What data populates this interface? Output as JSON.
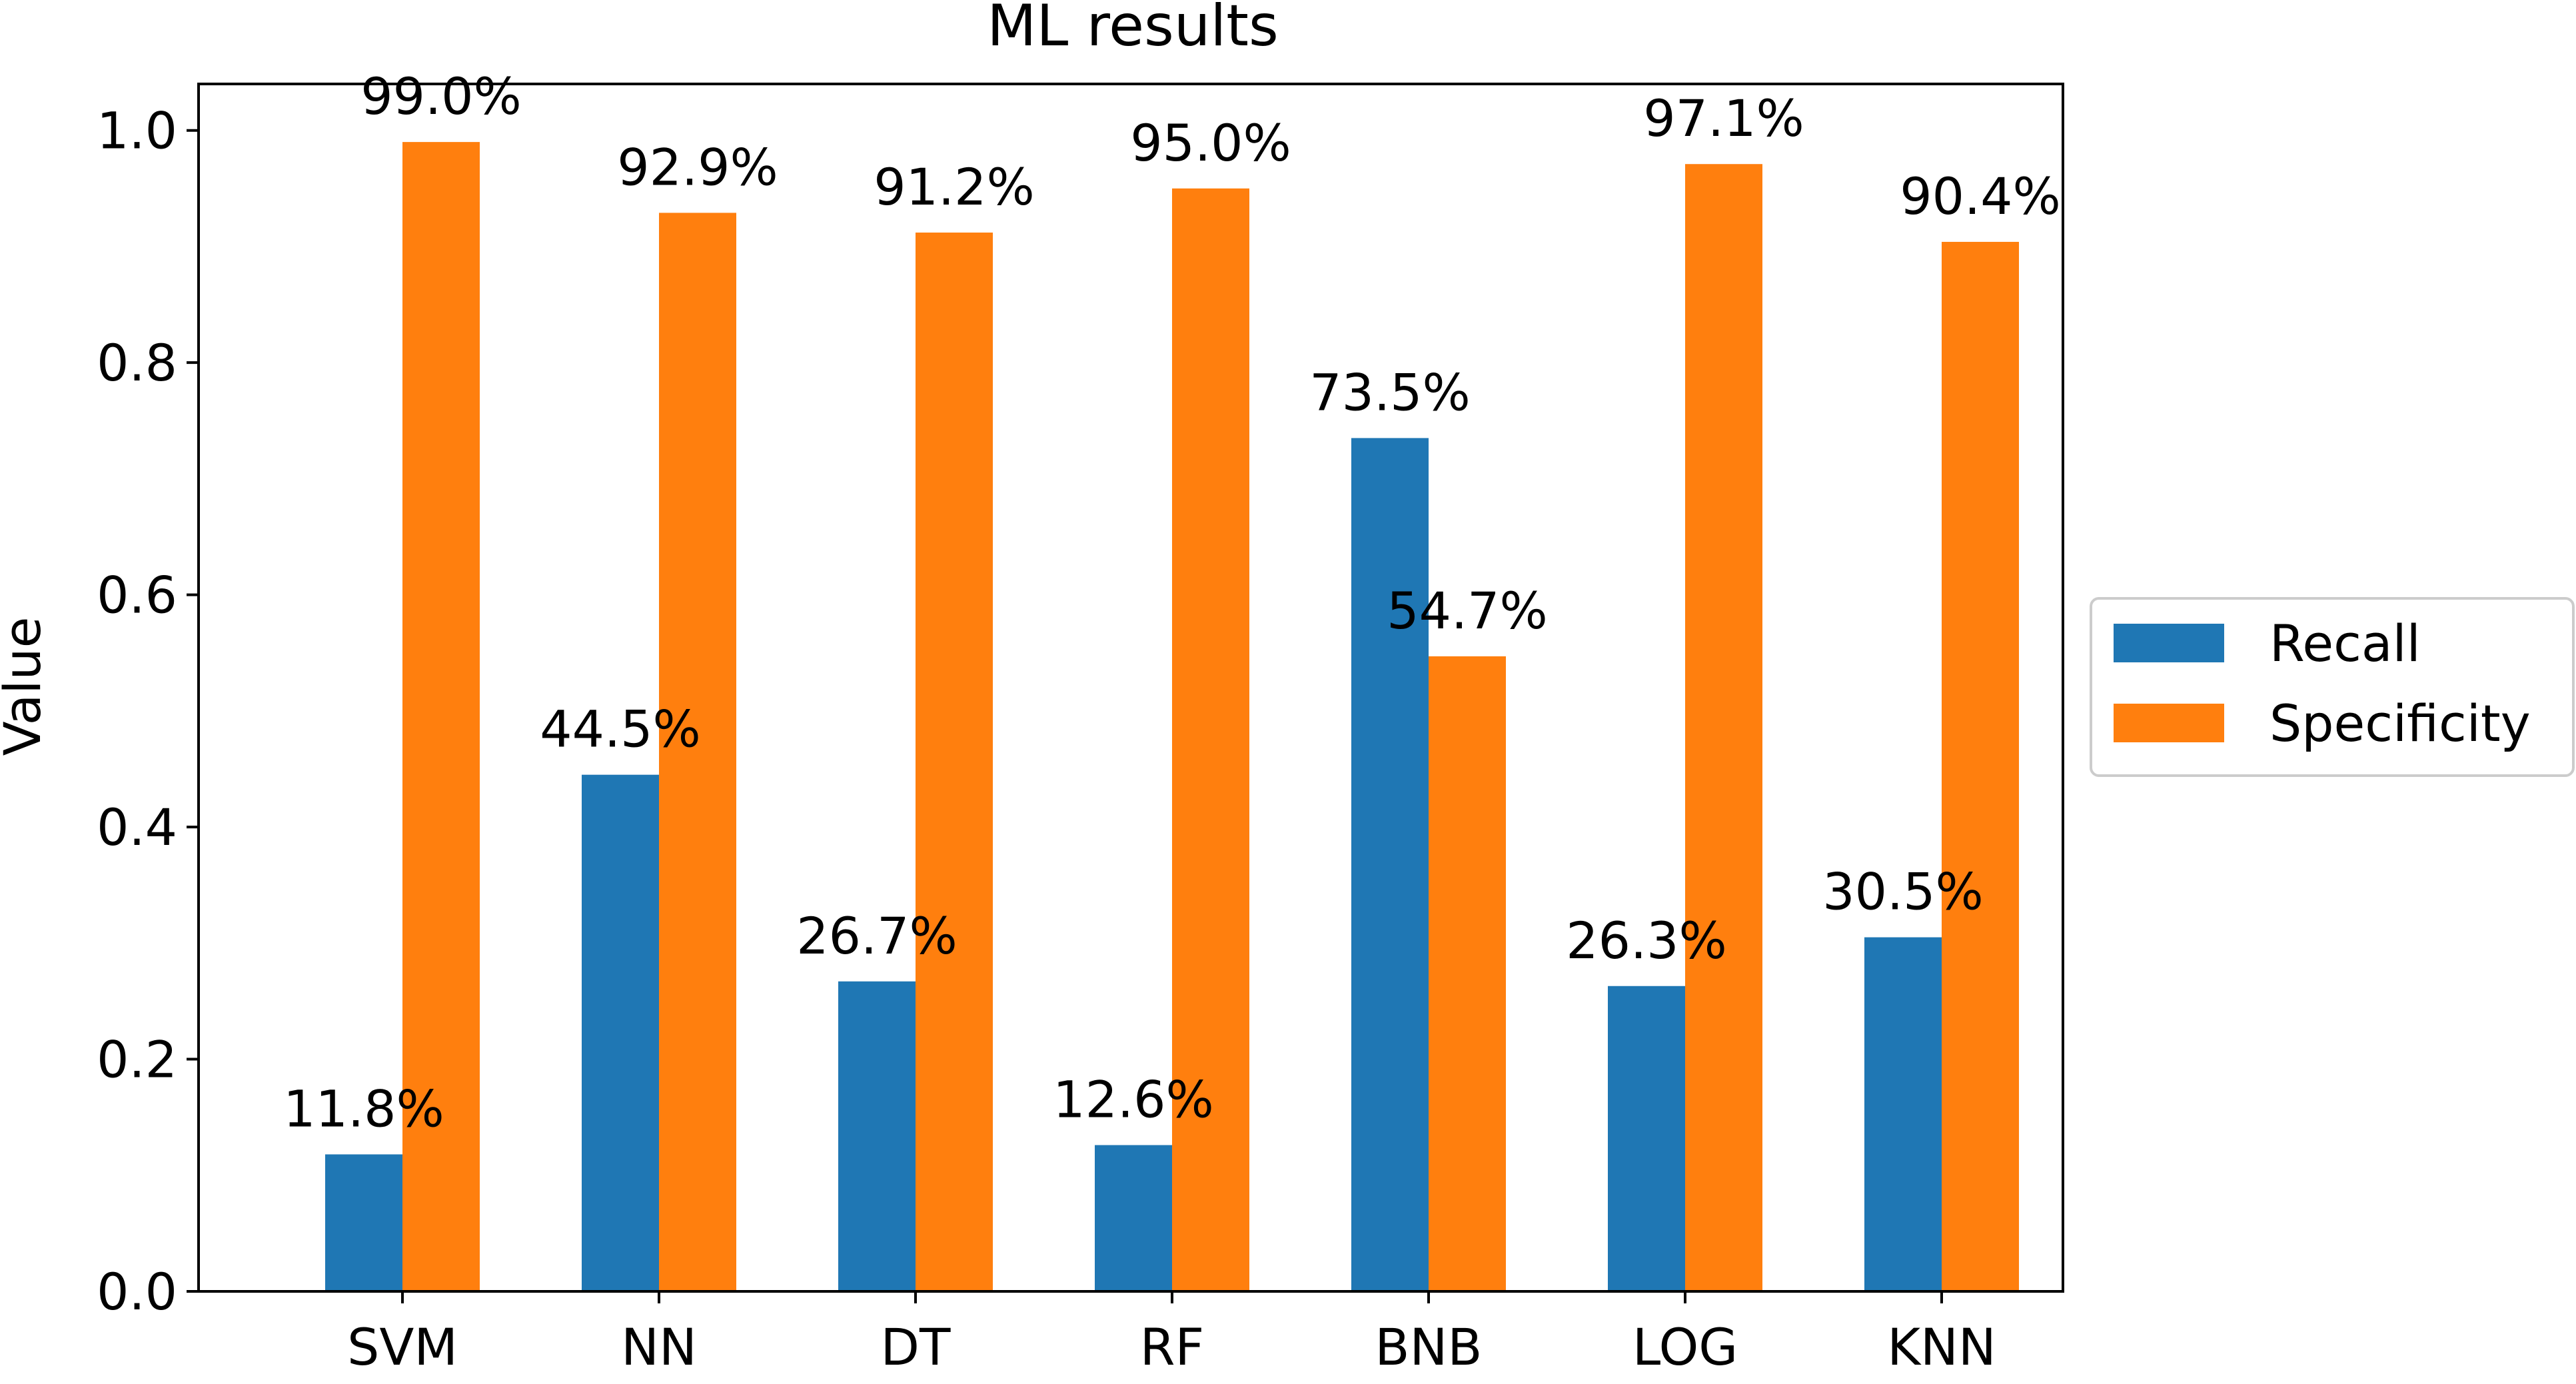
{
  "chart_data": {
    "type": "bar",
    "title": "ML results",
    "xlabel": "",
    "ylabel": "Value",
    "categories": [
      "SVM",
      "NN",
      "DT",
      "RF",
      "BNB",
      "LOG",
      "KNN"
    ],
    "series": [
      {
        "name": "Recall",
        "color": "#1f77b4",
        "values": [
          0.118,
          0.445,
          0.267,
          0.126,
          0.735,
          0.263,
          0.305
        ],
        "labels": [
          "11.8%",
          "44.5%",
          "26.7%",
          "12.6%",
          "73.5%",
          "26.3%",
          "30.5%"
        ]
      },
      {
        "name": "Specificity",
        "color": "#ff7f0e",
        "values": [
          0.99,
          0.929,
          0.912,
          0.95,
          0.547,
          0.971,
          0.904
        ],
        "labels": [
          "99.0%",
          "92.9%",
          "91.2%",
          "95.0%",
          "54.7%",
          "97.1%",
          "90.4%"
        ]
      }
    ],
    "ylim": [
      0,
      1.04
    ],
    "yticks": [
      0.0,
      0.2,
      0.4,
      0.6,
      0.8,
      1.0
    ],
    "ytick_labels": [
      "0.0",
      "0.2",
      "0.4",
      "0.6",
      "0.8",
      "1.0"
    ],
    "grid": false,
    "legend": {
      "placement": "right-outside"
    }
  }
}
